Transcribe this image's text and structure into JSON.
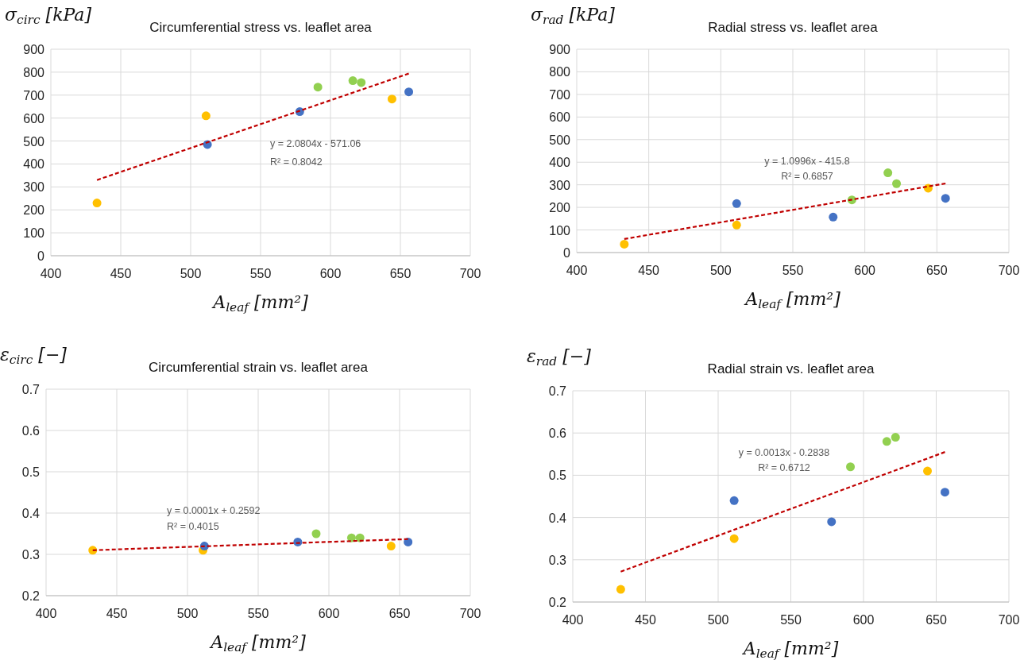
{
  "chart_data": [
    {
      "type": "scatter",
      "title": "Circumferential stress vs. leaflet area",
      "xlabel": "A$_{leaf}$ [mm²]",
      "ylabel": "σ$_{circ}$ [kPa]",
      "xlim": [
        400,
        700
      ],
      "xticks": [
        400,
        450,
        500,
        550,
        600,
        650,
        700
      ],
      "ylim": [
        0,
        900
      ],
      "yticks": [
        0,
        100,
        200,
        300,
        400,
        500,
        600,
        700,
        800,
        900
      ],
      "grid": true,
      "marker": "circle",
      "series": [
        {
          "color": "#ffc000",
          "x": [
            433,
            511,
            644
          ],
          "values": [
            230,
            610,
            683
          ]
        },
        {
          "color": "#4472c4",
          "x": [
            512,
            578,
            656
          ],
          "values": [
            485,
            628,
            714
          ]
        },
        {
          "color": "#92d050",
          "x": [
            591,
            616,
            622
          ],
          "values": [
            735,
            763,
            755
          ]
        },
        {
          "type": "line",
          "line_style": "dashed",
          "marker": "none",
          "color": "#c00000",
          "x": [
            433,
            656
          ],
          "values": [
            330,
            794
          ]
        }
      ],
      "annotations": [
        "y = 2.0804x - 571.06",
        "R² = 0.8042"
      ]
    },
    {
      "type": "scatter",
      "title": "Radial stress vs. leaflet area",
      "xlabel": "A$_{leaf}$ [mm²]",
      "ylabel": "σ$_{rad}$ [kPa]",
      "xlim": [
        400,
        700
      ],
      "xticks": [
        400,
        450,
        500,
        550,
        600,
        650,
        700
      ],
      "ylim": [
        0,
        900
      ],
      "yticks": [
        0,
        100,
        200,
        300,
        400,
        500,
        600,
        700,
        800,
        900
      ],
      "grid": true,
      "marker": "circle",
      "series": [
        {
          "color": "#ffc000",
          "x": [
            433,
            511,
            644
          ],
          "values": [
            37,
            122,
            285
          ]
        },
        {
          "color": "#4472c4",
          "x": [
            511,
            578,
            656
          ],
          "values": [
            217,
            157,
            240
          ]
        },
        {
          "color": "#92d050",
          "x": [
            591,
            616,
            622
          ],
          "values": [
            233,
            353,
            305
          ]
        },
        {
          "type": "line",
          "line_style": "dashed",
          "marker": "none",
          "color": "#c00000",
          "x": [
            433,
            656
          ],
          "values": [
            60,
            306
          ]
        }
      ],
      "annotations": [
        "y = 1.0996x - 415.8",
        "R² = 0.6857"
      ]
    },
    {
      "type": "scatter",
      "title": "Circumferential strain vs. leaflet area",
      "xlabel": "A$_{leaf}$ [mm²]",
      "ylabel": "ε$_{circ}$ [−]",
      "xlim": [
        400,
        700
      ],
      "xticks": [
        400,
        450,
        500,
        550,
        600,
        650,
        700
      ],
      "ylim": [
        0.2,
        0.7
      ],
      "yticks": [
        0.2,
        0.3,
        0.4,
        0.5,
        0.6,
        0.7
      ],
      "grid": true,
      "marker": "circle",
      "series": [
        {
          "color": "#ffc000",
          "x": [
            433,
            511,
            644
          ],
          "values": [
            0.31,
            0.31,
            0.32
          ]
        },
        {
          "color": "#4472c4",
          "x": [
            512,
            578,
            656
          ],
          "values": [
            0.32,
            0.33,
            0.33
          ]
        },
        {
          "color": "#92d050",
          "x": [
            591,
            616,
            622
          ],
          "values": [
            0.35,
            0.34,
            0.34
          ]
        },
        {
          "type": "line",
          "line_style": "dashed",
          "marker": "none",
          "color": "#c00000",
          "x": [
            433,
            656
          ],
          "values": [
            0.31,
            0.337
          ]
        }
      ],
      "annotations": [
        "y = 0.0001x + 0.2592",
        "R² = 0.4015"
      ]
    },
    {
      "type": "scatter",
      "title": "Radial strain vs. leaflet area",
      "xlabel": "A$_{leaf}$ [mm²]",
      "ylabel": "ε$_{rad}$ [−]",
      "xlim": [
        400,
        700
      ],
      "xticks": [
        400,
        450,
        500,
        550,
        600,
        650,
        700
      ],
      "ylim": [
        0.2,
        0.7
      ],
      "yticks": [
        0.2,
        0.3,
        0.4,
        0.5,
        0.6,
        0.7
      ],
      "grid": true,
      "marker": "circle",
      "series": [
        {
          "color": "#ffc000",
          "x": [
            433,
            511,
            644
          ],
          "values": [
            0.23,
            0.35,
            0.51
          ]
        },
        {
          "color": "#4472c4",
          "x": [
            511,
            578,
            656
          ],
          "values": [
            0.44,
            0.39,
            0.46
          ]
        },
        {
          "color": "#92d050",
          "x": [
            591,
            616,
            622
          ],
          "values": [
            0.52,
            0.58,
            0.59
          ]
        },
        {
          "type": "line",
          "line_style": "dashed",
          "marker": "none",
          "color": "#c00000",
          "x": [
            433,
            656
          ],
          "values": [
            0.272,
            0.555
          ]
        }
      ],
      "annotations": [
        "y = 0.0013x - 0.2838",
        "R² = 0.6712"
      ]
    }
  ]
}
